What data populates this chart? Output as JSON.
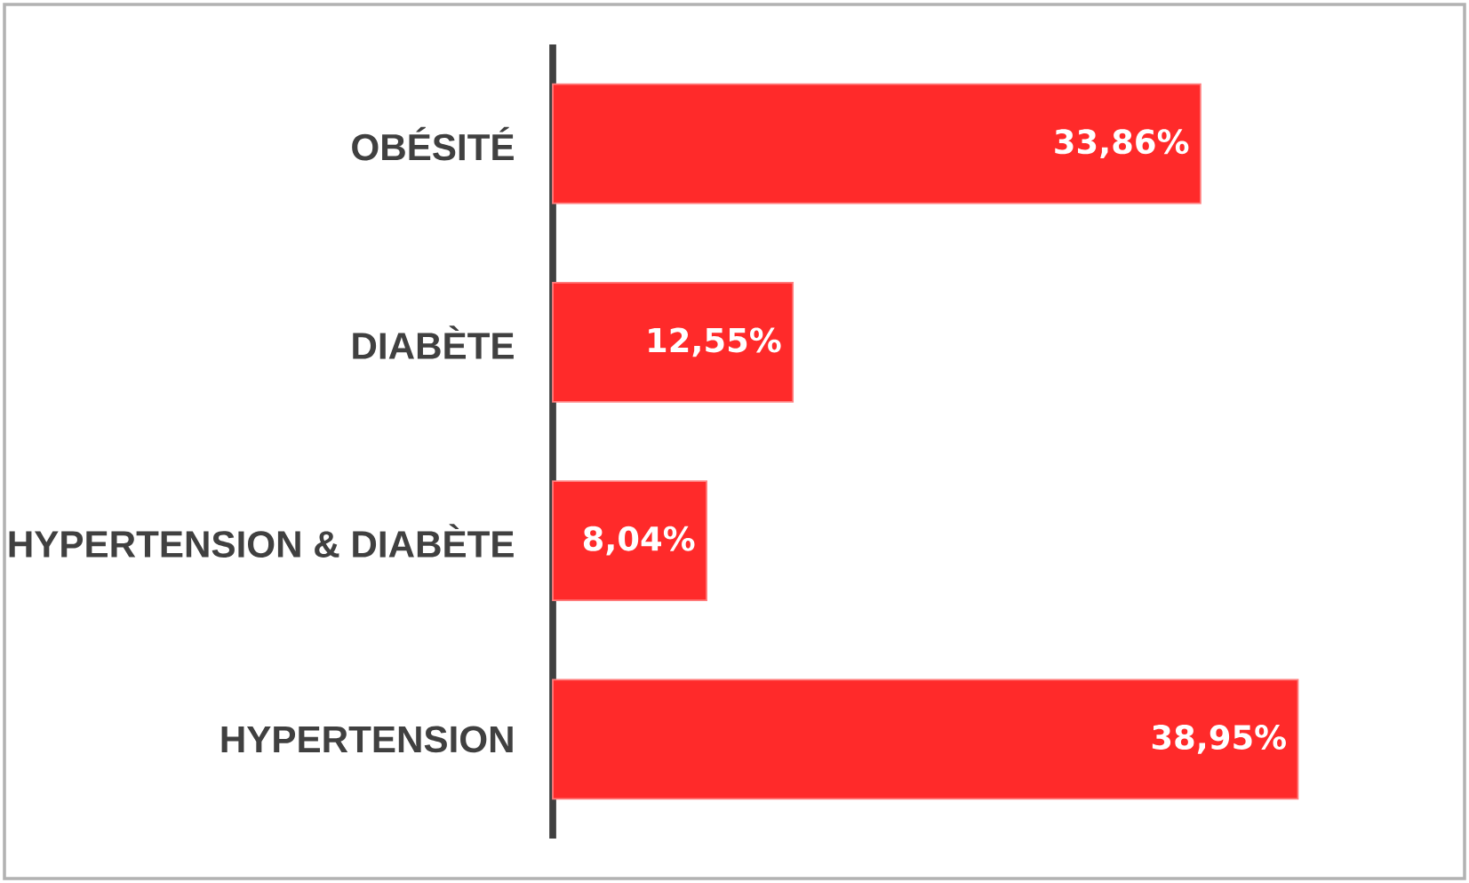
{
  "chart_data": {
    "type": "bar",
    "orientation": "horizontal",
    "categories": [
      "OBÉSITÉ",
      "DIABÈTE",
      "HYPERTENSION & DIABÈTE",
      "HYPERTENSION"
    ],
    "values": [
      33.86,
      12.55,
      8.04,
      38.95
    ],
    "value_labels": [
      "33,86%",
      "12,55%",
      "8,04%",
      "38,95%"
    ],
    "color": "#ff2a2a"
  }
}
